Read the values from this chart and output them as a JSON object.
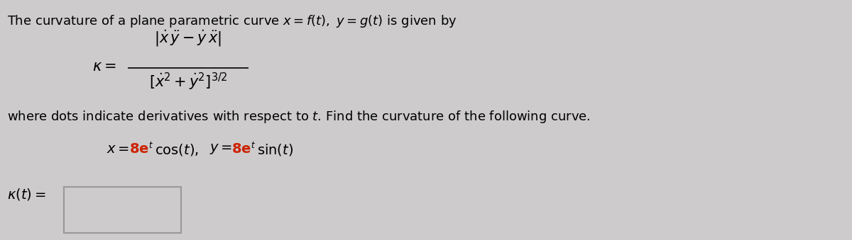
{
  "background_color": "#cdcbcb",
  "text_color": "#000000",
  "red_color": "#cc2200",
  "figwidth": 12.0,
  "figheight": 3.39,
  "dpi": 100,
  "line1_fontsize": 13,
  "formula_fontsize": 15,
  "body_fontsize": 13,
  "curve_fontsize": 14,
  "answer_fontsize": 14
}
